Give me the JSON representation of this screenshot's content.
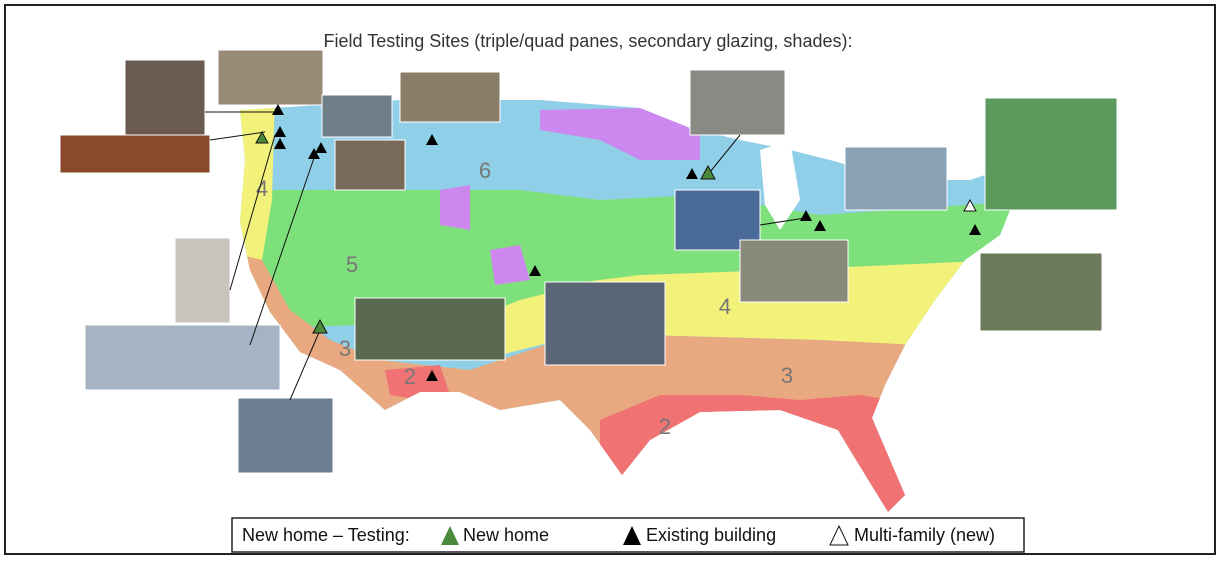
{
  "title": "Field Testing Sites (triple/quad panes, secondary glazing, shades):",
  "zones": [
    "6",
    "5",
    "4",
    "4",
    "3",
    "3",
    "2",
    "2"
  ],
  "legend": {
    "label": "New home – Testing:",
    "items": [
      "New home",
      "Existing building",
      "Multi-family (new)"
    ]
  }
}
